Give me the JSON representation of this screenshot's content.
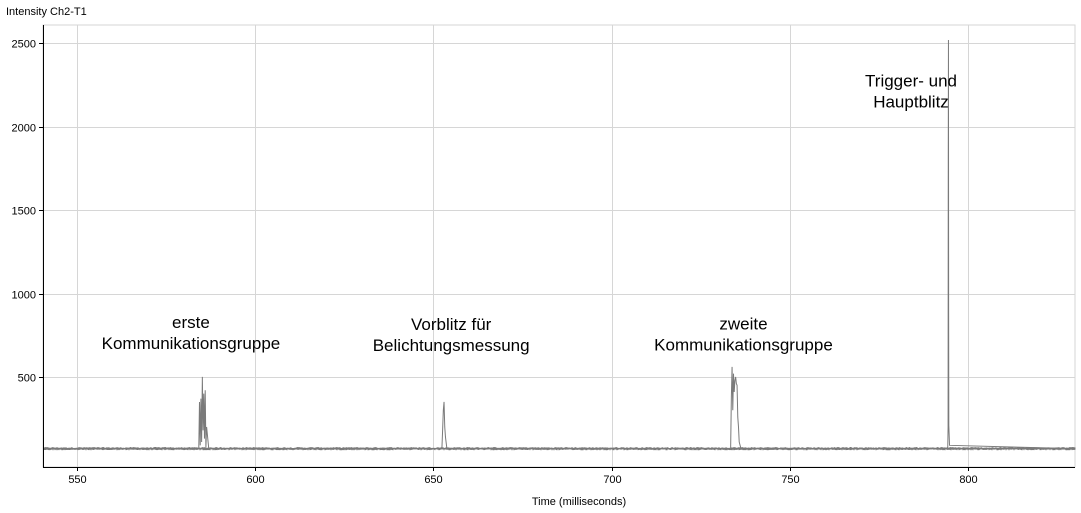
{
  "chart_data": {
    "type": "line",
    "title": "Intensity Ch2-T1",
    "xlabel": "Time (milliseconds)",
    "ylabel": "",
    "xlim": [
      540.5,
      830
    ],
    "ylim": [
      -40,
      2610
    ],
    "xticks": [
      550,
      600,
      650,
      700,
      750,
      800
    ],
    "yticks": [
      500,
      1000,
      1500,
      2000,
      2500
    ],
    "grid": true,
    "baseline": 70,
    "noise": 10,
    "color": "#7a7a7a",
    "gridColor": "#d6d6d6",
    "series": [
      {
        "name": "",
        "x": [
          540.5,
          584.2,
          584.4,
          584.6,
          584.8,
          585.0,
          585.2,
          585.4,
          585.6,
          585.8,
          586.0,
          586.2,
          586.4,
          587.0,
          652.4,
          652.6,
          652.8,
          653.0,
          653.2,
          653.4,
          653.8,
          733.4,
          733.6,
          733.8,
          734.0,
          734.2,
          734.4,
          734.6,
          734.8,
          735.0,
          735.2,
          735.4,
          735.6,
          735.8,
          736.3,
          794.3,
          794.4,
          794.45,
          794.5,
          794.55,
          794.6,
          794.8,
          830.0
        ],
        "y": [
          70,
          70,
          350,
          90,
          370,
          110,
          500,
          180,
          400,
          130,
          420,
          80,
          200,
          70,
          70,
          180,
          300,
          350,
          200,
          140,
          70,
          70,
          380,
          560,
          300,
          520,
          410,
          480,
          500,
          460,
          450,
          260,
          200,
          110,
          70,
          70,
          200,
          1800,
          2520,
          900,
          210,
          90,
          70
        ]
      }
    ],
    "annotations": [
      {
        "lines": [
          "erste",
          "Kommunikationsgruppe"
        ],
        "x": 582,
        "y": 793
      },
      {
        "lines": [
          "Vorblitz für",
          "Belichtungsmessung"
        ],
        "x": 655,
        "y": 780
      },
      {
        "lines": [
          "zweite",
          "Kommunikationsgruppe"
        ],
        "x": 737,
        "y": 783
      },
      {
        "lines": [
          "Trigger- und",
          "Hauptblitz"
        ],
        "x": 784,
        "y": 2240
      }
    ]
  }
}
